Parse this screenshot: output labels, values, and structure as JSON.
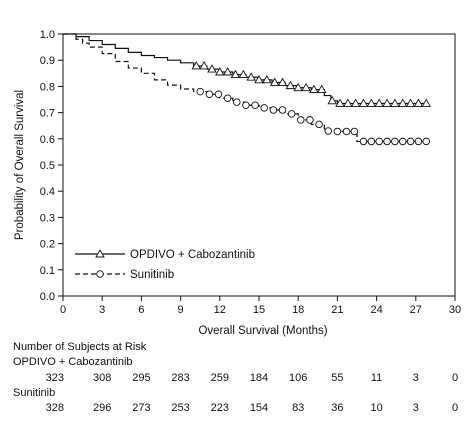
{
  "chart_data": {
    "type": "line",
    "subtype": "kaplan-meier",
    "xlabel": "Overall Survival (Months)",
    "ylabel": "Probability of Overall Survival",
    "xlim": [
      0,
      30
    ],
    "ylim": [
      0.0,
      1.0
    ],
    "x_ticks": [
      "0",
      "3",
      "6",
      "9",
      "12",
      "15",
      "18",
      "21",
      "24",
      "27",
      "30"
    ],
    "y_ticks": [
      "0.0",
      "0.1",
      "0.2",
      "0.3",
      "0.4",
      "0.5",
      "0.6",
      "0.7",
      "0.8",
      "0.9",
      "1.0"
    ],
    "grid": false,
    "legend_position": "bottom-left",
    "series": [
      {
        "name": "OPDIVO + Cabozantinib",
        "line_style": "solid",
        "marker": "triangle",
        "color": "#111111",
        "points": [
          [
            0,
            1.0
          ],
          [
            1,
            0.99
          ],
          [
            2,
            0.975
          ],
          [
            3,
            0.96
          ],
          [
            4,
            0.945
          ],
          [
            5,
            0.93
          ],
          [
            6,
            0.918
          ],
          [
            7,
            0.91
          ],
          [
            8,
            0.9
          ],
          [
            9,
            0.89
          ],
          [
            10,
            0.878
          ],
          [
            11,
            0.866
          ],
          [
            12,
            0.855
          ],
          [
            13,
            0.845
          ],
          [
            14,
            0.835
          ],
          [
            15,
            0.825
          ],
          [
            16,
            0.815
          ],
          [
            17,
            0.803
          ],
          [
            18,
            0.795
          ],
          [
            19,
            0.788
          ],
          [
            20,
            0.765
          ],
          [
            20.5,
            0.745
          ],
          [
            21,
            0.735
          ],
          [
            24,
            0.735
          ],
          [
            27,
            0.735
          ],
          [
            28,
            0.735
          ]
        ],
        "censor_x": [
          10.2,
          10.8,
          11.4,
          12,
          12.6,
          13.2,
          13.8,
          14.4,
          15,
          15.6,
          16.2,
          16.8,
          17.4,
          18,
          18.6,
          19.2,
          19.8,
          20.6,
          21.2,
          21.8,
          22.4,
          23,
          23.6,
          24.2,
          24.8,
          25.4,
          26,
          26.6,
          27.2,
          27.8
        ]
      },
      {
        "name": "Sunitinib",
        "line_style": "dashed",
        "marker": "circle",
        "color": "#111111",
        "points": [
          [
            0,
            1.0
          ],
          [
            1,
            0.98
          ],
          [
            1.5,
            0.965
          ],
          [
            2,
            0.95
          ],
          [
            3,
            0.925
          ],
          [
            4,
            0.895
          ],
          [
            5,
            0.87
          ],
          [
            6,
            0.85
          ],
          [
            7,
            0.825
          ],
          [
            8,
            0.805
          ],
          [
            9,
            0.79
          ],
          [
            10,
            0.78
          ],
          [
            11,
            0.77
          ],
          [
            12,
            0.755
          ],
          [
            13,
            0.74
          ],
          [
            14,
            0.728
          ],
          [
            15,
            0.718
          ],
          [
            16,
            0.71
          ],
          [
            17,
            0.695
          ],
          [
            18,
            0.672
          ],
          [
            19,
            0.655
          ],
          [
            20,
            0.63
          ],
          [
            21,
            0.628
          ],
          [
            22,
            0.628
          ],
          [
            22.5,
            0.59
          ],
          [
            24,
            0.59
          ],
          [
            27,
            0.59
          ],
          [
            27.8,
            0.59
          ]
        ],
        "censor_x": [
          10.5,
          11.2,
          11.9,
          12.6,
          13.3,
          14,
          14.7,
          15.4,
          16.1,
          16.8,
          17.5,
          18.2,
          18.9,
          19.6,
          20.3,
          21,
          21.7,
          22.3,
          23,
          23.6,
          24.2,
          24.8,
          25.4,
          26,
          26.6,
          27.2,
          27.8
        ]
      }
    ],
    "risk_table": {
      "title": "Number of Subjects at Risk",
      "rows": [
        {
          "label": "OPDIVO + Cabozantinib",
          "values": [
            "323",
            "308",
            "295",
            "283",
            "259",
            "184",
            "106",
            "55",
            "11",
            "3",
            "0"
          ]
        },
        {
          "label": "Sunitinib",
          "values": [
            "328",
            "296",
            "273",
            "253",
            "223",
            "154",
            "83",
            "36",
            "10",
            "3",
            "0"
          ]
        }
      ]
    }
  }
}
